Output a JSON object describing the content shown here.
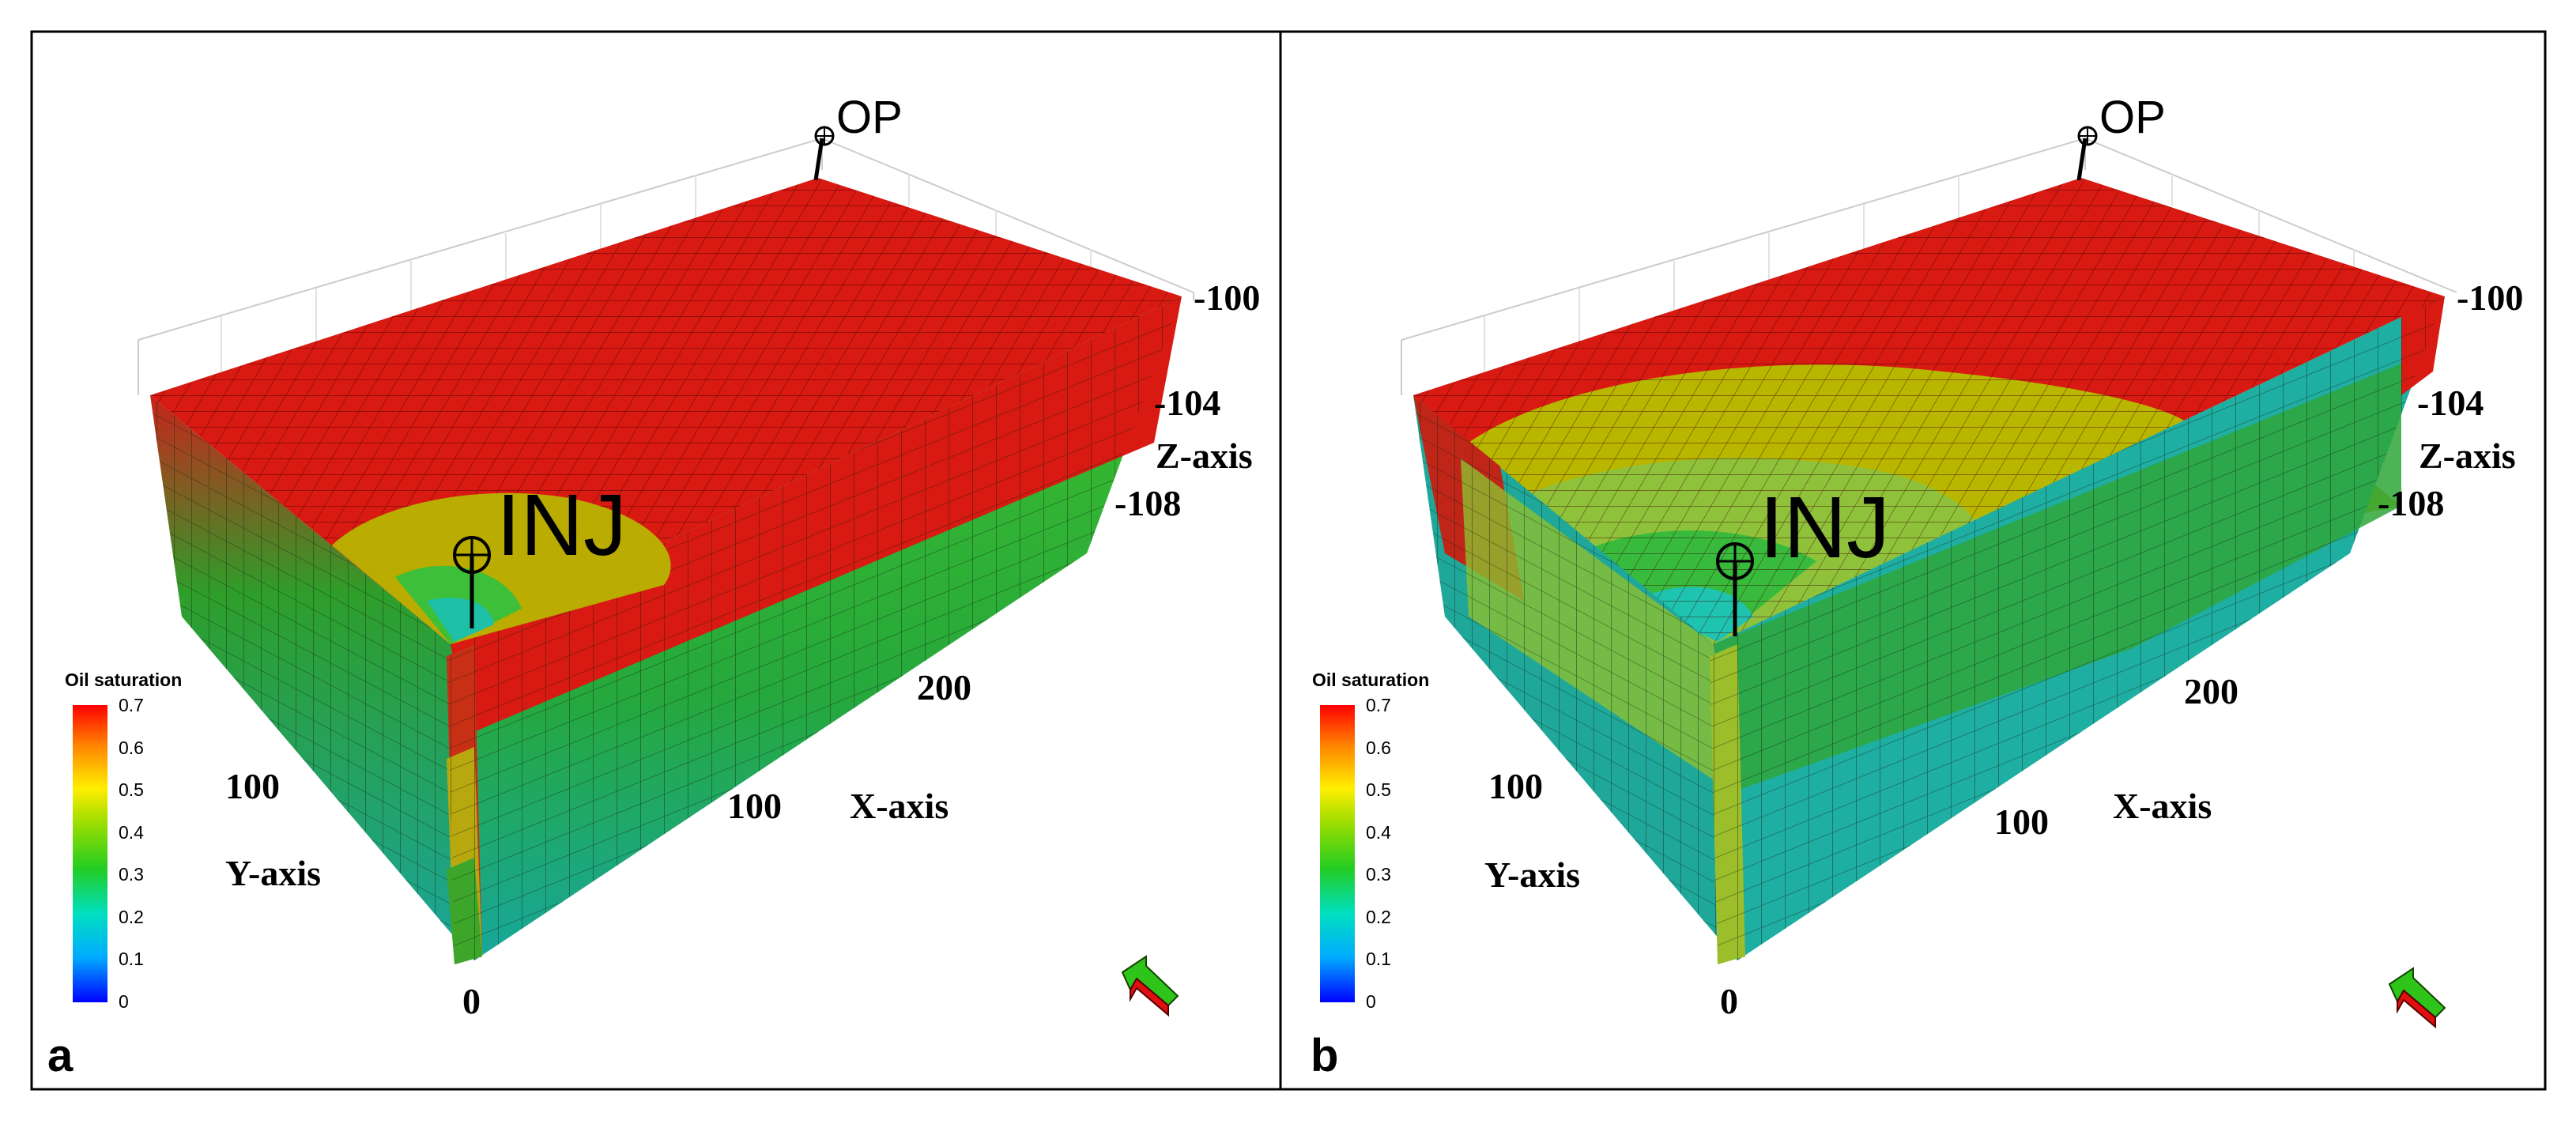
{
  "figure": {
    "panels": [
      {
        "panel_label": "a",
        "wells": {
          "injector": "INJ",
          "producer": "OP"
        },
        "axes": {
          "z_label": "Z-axis",
          "z_ticks": [
            "-100",
            "-104",
            "-108"
          ],
          "x_label": "X-axis",
          "x_ticks": [
            "100",
            "200"
          ],
          "y_label": "Y-axis",
          "y_ticks": [
            "100"
          ],
          "origin_tick": "0"
        },
        "colorbar": {
          "title": "Oil saturation",
          "ticks": [
            "0.7",
            "0.6",
            "0.5",
            "0.4",
            "0.3",
            "0.2",
            "0.1",
            "0"
          ]
        },
        "flood_front_extent": 0.35
      },
      {
        "panel_label": "b",
        "wells": {
          "injector": "INJ",
          "producer": "OP"
        },
        "axes": {
          "z_label": "Z-axis",
          "z_ticks": [
            "-100",
            "-104",
            "-108"
          ],
          "x_label": "X-axis",
          "x_ticks": [
            "100",
            "200"
          ],
          "y_label": "Y-axis",
          "y_ticks": [
            "100"
          ],
          "origin_tick": "0"
        },
        "colorbar": {
          "title": "Oil saturation",
          "ticks": [
            "0.7",
            "0.6",
            "0.5",
            "0.4",
            "0.3",
            "0.2",
            "0.1",
            "0"
          ]
        },
        "flood_front_extent": 0.7
      }
    ],
    "colors": {
      "high_oil": "#d81a12",
      "mid_oil": "#c8c400",
      "green": "#2ea82a",
      "low_oil": "#1fb4a8",
      "frame": "#000000"
    }
  }
}
